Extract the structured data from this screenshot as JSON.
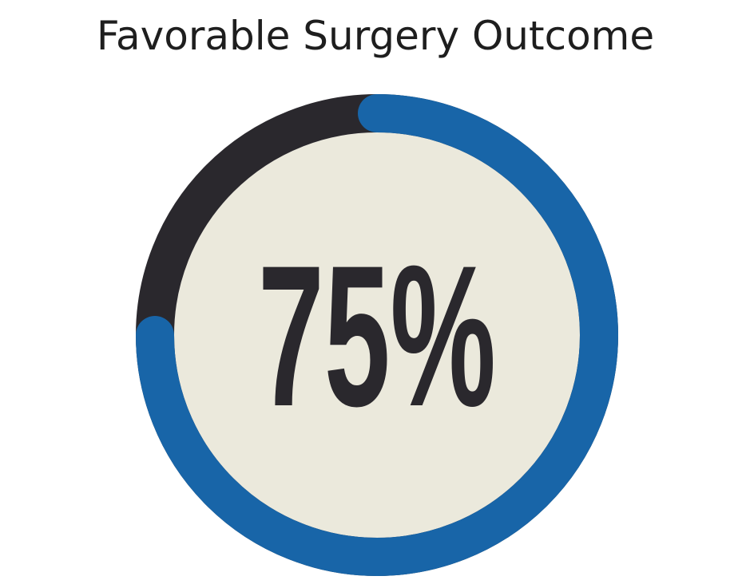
{
  "chart_data": {
    "type": "gauge",
    "title": "Favorable Surgery Outcome",
    "values": [
      75
    ],
    "value_labels": [
      "75%"
    ],
    "ylim": [
      0,
      100
    ],
    "color": "#1865a8",
    "track_color": "#2a282d",
    "face_color": "#ebe9dc"
  }
}
